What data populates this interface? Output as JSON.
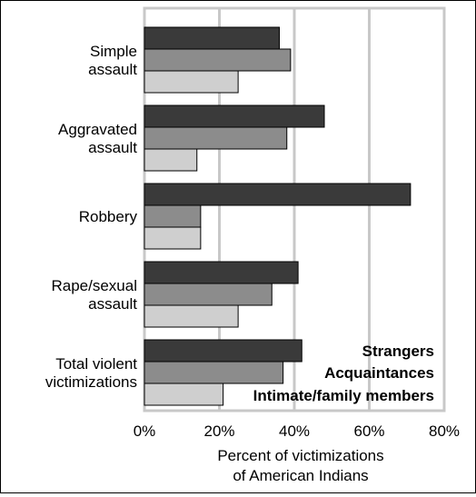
{
  "chart_data": {
    "type": "bar",
    "orientation": "horizontal",
    "categories": [
      [
        "Simple",
        "assault"
      ],
      [
        "Aggravated",
        "assault"
      ],
      [
        "Robbery"
      ],
      [
        "Rape/sexual",
        "assault"
      ],
      [
        "Total violent",
        "victimizations"
      ]
    ],
    "series": [
      {
        "name": "Strangers",
        "color": "#3a3a3a",
        "values": [
          36,
          48,
          71,
          41,
          42
        ]
      },
      {
        "name": "Acquaintances",
        "color": "#8c8c8c",
        "values": [
          39,
          38,
          15,
          34,
          37
        ]
      },
      {
        "name": "Intimate/family members",
        "color": "#cfcfcf",
        "values": [
          25,
          14,
          15,
          25,
          21
        ]
      }
    ],
    "xlim": [
      0,
      80
    ],
    "xticks": [
      "0%",
      "20%",
      "40%",
      "60%",
      "80%"
    ],
    "xlabel": [
      "Percent of victimizations",
      "of American Indians"
    ],
    "ylabel": "",
    "title": "",
    "grid": "vertical",
    "legend_position": "bottom-right, inside plot"
  }
}
